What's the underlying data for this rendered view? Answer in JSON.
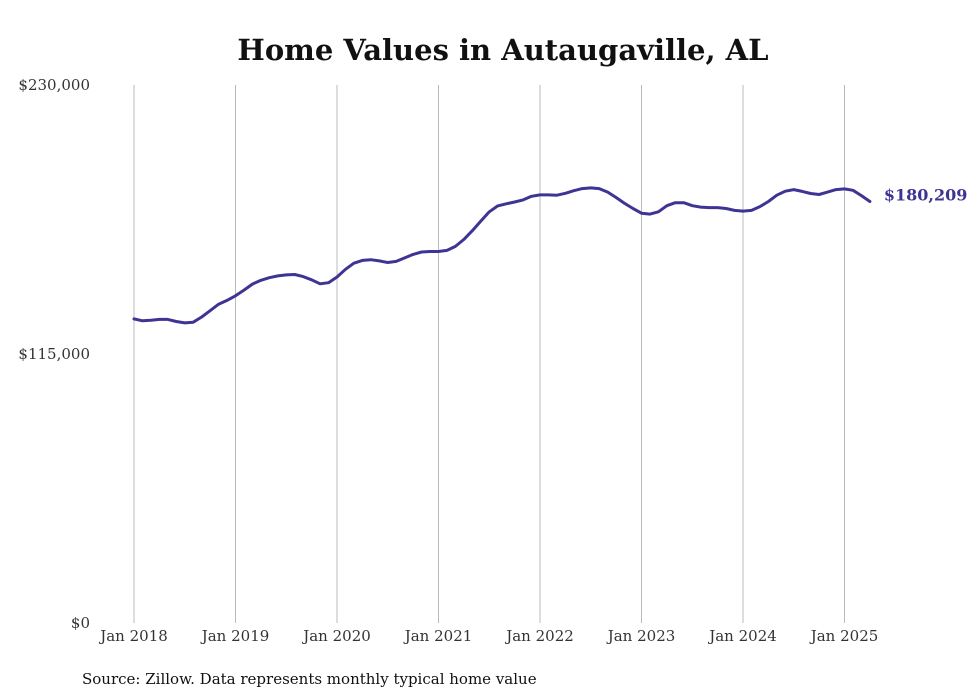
{
  "chart_data": {
    "type": "line",
    "title": "Home Values in Autaugaville, AL",
    "xlabel": "",
    "ylabel": "",
    "source": "Source: Zillow. Data represents monthly typical home value",
    "ylim": [
      0,
      230000
    ],
    "y_ticks": [
      {
        "value": 0,
        "label": "$0"
      },
      {
        "value": 115000,
        "label": "$115,000"
      },
      {
        "value": 230000,
        "label": "$230,000"
      }
    ],
    "x_ticks": [
      {
        "value": "2018-01",
        "label": "Jan 2018"
      },
      {
        "value": "2019-01",
        "label": "Jan 2019"
      },
      {
        "value": "2020-01",
        "label": "Jan 2020"
      },
      {
        "value": "2021-01",
        "label": "Jan 2021"
      },
      {
        "value": "2022-01",
        "label": "Jan 2022"
      },
      {
        "value": "2023-01",
        "label": "Jan 2023"
      },
      {
        "value": "2024-01",
        "label": "Jan 2024"
      },
      {
        "value": "2025-01",
        "label": "Jan 2025"
      }
    ],
    "grid": "vertical",
    "line_color": "#3d3494",
    "end_label": "$180,209",
    "series": [
      {
        "x": [
          "2018-01",
          "2018-02",
          "2018-03",
          "2018-04",
          "2018-05",
          "2018-06",
          "2018-07",
          "2018-08",
          "2018-09",
          "2018-10",
          "2018-11",
          "2018-12",
          "2019-01",
          "2019-02",
          "2019-03",
          "2019-04",
          "2019-05",
          "2019-06",
          "2019-07",
          "2019-08",
          "2019-09",
          "2019-10",
          "2019-11",
          "2019-12",
          "2020-01",
          "2020-02",
          "2020-03",
          "2020-04",
          "2020-05",
          "2020-06",
          "2020-07",
          "2020-08",
          "2020-09",
          "2020-10",
          "2020-11",
          "2020-12",
          "2021-01",
          "2021-02",
          "2021-03",
          "2021-04",
          "2021-05",
          "2021-06",
          "2021-07",
          "2021-08",
          "2021-09",
          "2021-10",
          "2021-11",
          "2021-12",
          "2022-01",
          "2022-02",
          "2022-03",
          "2022-04",
          "2022-05",
          "2022-06",
          "2022-07",
          "2022-08",
          "2022-09",
          "2022-10",
          "2022-11",
          "2022-12",
          "2023-01",
          "2023-02",
          "2023-03",
          "2023-04",
          "2023-05",
          "2023-06",
          "2023-07",
          "2023-08",
          "2023-09",
          "2023-10",
          "2023-11",
          "2023-12",
          "2024-01",
          "2024-02",
          "2024-03",
          "2024-04",
          "2024-05",
          "2024-06",
          "2024-07",
          "2024-08",
          "2024-09",
          "2024-10",
          "2024-11",
          "2024-12",
          "2025-01",
          "2025-02",
          "2025-03",
          "2025-04"
        ],
        "values": [
          130000,
          129200,
          129400,
          129800,
          129800,
          128900,
          128300,
          128600,
          130800,
          133500,
          136300,
          137900,
          139900,
          142300,
          144900,
          146500,
          147600,
          148400,
          148800,
          149000,
          148100,
          146700,
          145000,
          145500,
          147900,
          151200,
          153800,
          155000,
          155300,
          154800,
          154100,
          154600,
          156100,
          157600,
          158600,
          158800,
          158800,
          159300,
          161000,
          164000,
          167700,
          171800,
          175800,
          178300,
          179200,
          180000,
          180900,
          182400,
          183000,
          183000,
          182900,
          183700,
          184800,
          185700,
          186000,
          185700,
          184200,
          181900,
          179400,
          177200,
          175200,
          174800,
          175800,
          178400,
          179700,
          179700,
          178400,
          177800,
          177600,
          177600,
          177200,
          176400,
          176100,
          176400,
          178000,
          180200,
          182900,
          184600,
          185300,
          184500,
          183600,
          183200,
          184200,
          185300,
          185600,
          185000,
          182700,
          180209
        ]
      }
    ]
  }
}
